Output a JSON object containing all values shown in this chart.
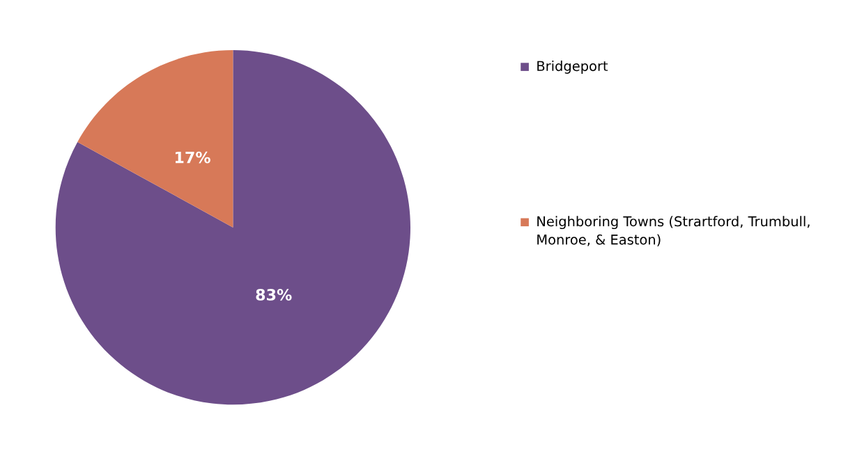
{
  "chart_data": {
    "type": "pie",
    "categories": [
      "Bridgeport",
      "Neighboring Towns (Strartford, Trumbull, Monroe, & Easton)"
    ],
    "values": [
      83,
      17
    ],
    "colors": [
      "#6d4e8a",
      "#d77958"
    ],
    "value_labels": [
      "83%",
      "17%"
    ],
    "legend": "right"
  }
}
